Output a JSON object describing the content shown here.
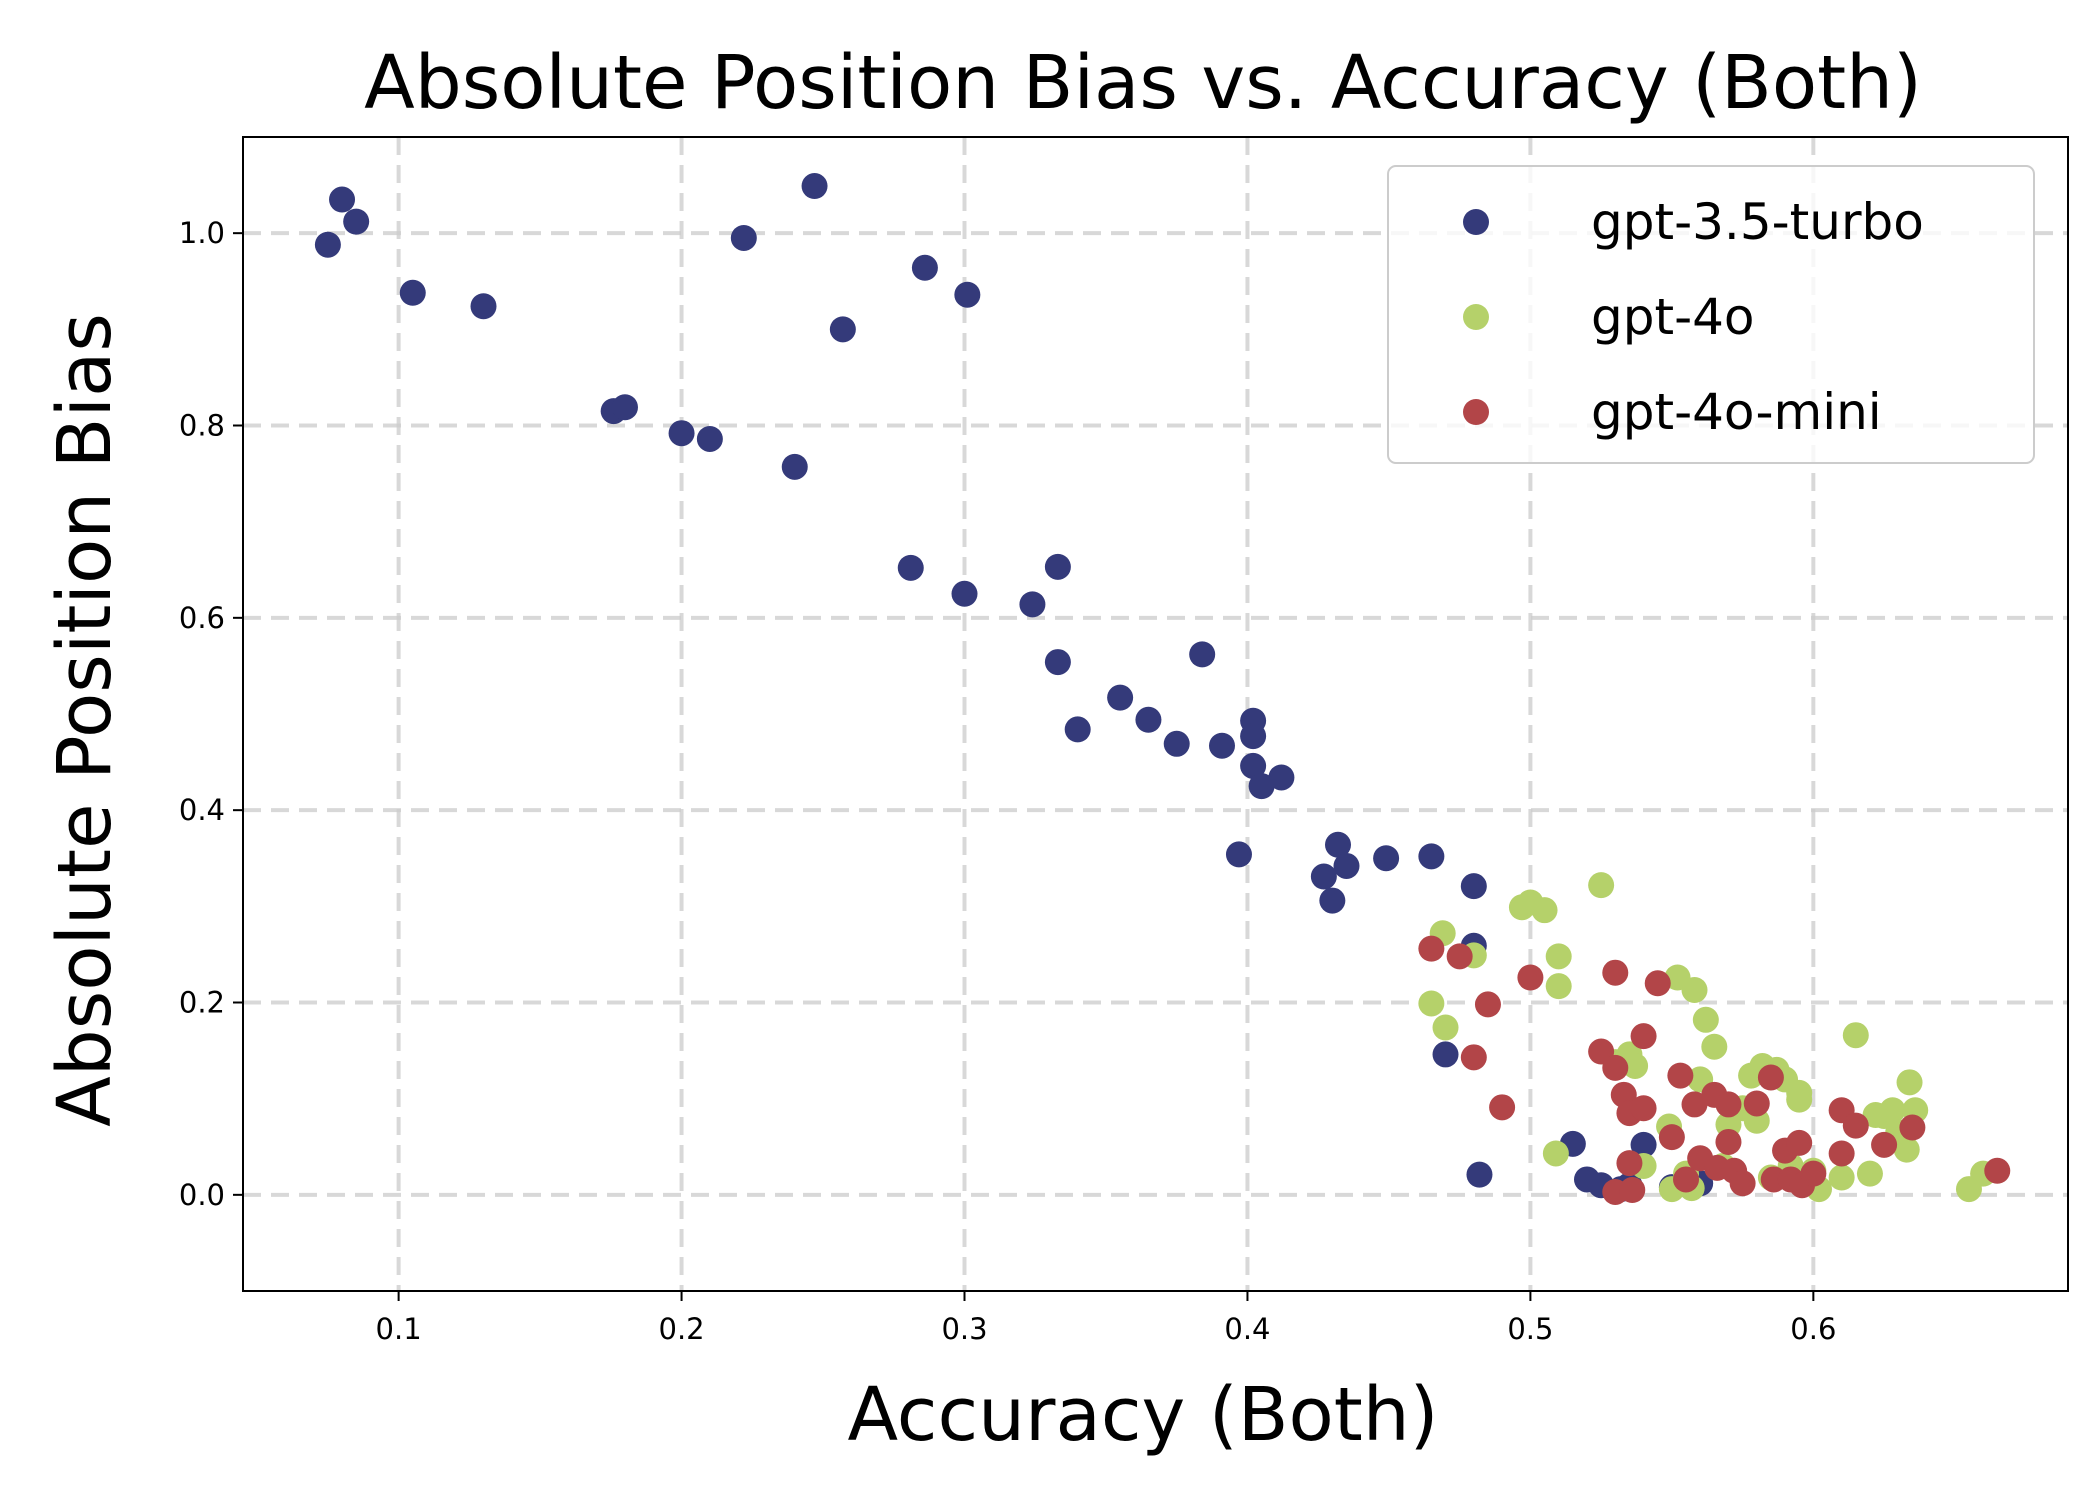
{
  "chart_data": {
    "type": "scatter",
    "title": "Absolute Position Bias vs. Accuracy (Both)",
    "xlabel": "Accuracy (Both)",
    "ylabel": "Absolute Position Bias",
    "xlim": [
      0.045,
      0.69
    ],
    "ylim": [
      -0.1,
      1.1
    ],
    "xticks": [
      0.1,
      0.2,
      0.3,
      0.4,
      0.5,
      0.6
    ],
    "yticks": [
      0.0,
      0.2,
      0.4,
      0.6,
      0.8,
      1.0
    ],
    "xtick_labels": [
      "0.1",
      "0.2",
      "0.3",
      "0.4",
      "0.5",
      "0.6"
    ],
    "ytick_labels": [
      "0.0",
      "0.2",
      "0.4",
      "0.6",
      "0.8",
      "1.0"
    ],
    "grid": true,
    "legend_position": "top-right",
    "series": [
      {
        "name": "gpt-3.5-turbo",
        "color": "#343a7a",
        "points": [
          [
            0.075,
            0.988
          ],
          [
            0.08,
            1.035
          ],
          [
            0.085,
            1.012
          ],
          [
            0.105,
            0.938
          ],
          [
            0.13,
            0.924
          ],
          [
            0.176,
            0.815
          ],
          [
            0.18,
            0.819
          ],
          [
            0.2,
            0.792
          ],
          [
            0.21,
            0.786
          ],
          [
            0.222,
            0.995
          ],
          [
            0.24,
            0.757
          ],
          [
            0.247,
            1.049
          ],
          [
            0.257,
            0.9
          ],
          [
            0.281,
            0.652
          ],
          [
            0.286,
            0.964
          ],
          [
            0.3,
            0.625
          ],
          [
            0.301,
            0.936
          ],
          [
            0.324,
            0.614
          ],
          [
            0.333,
            0.554
          ],
          [
            0.333,
            0.653
          ],
          [
            0.34,
            0.484
          ],
          [
            0.355,
            0.517
          ],
          [
            0.365,
            0.494
          ],
          [
            0.375,
            0.469
          ],
          [
            0.384,
            0.562
          ],
          [
            0.391,
            0.467
          ],
          [
            0.397,
            0.354
          ],
          [
            0.402,
            0.493
          ],
          [
            0.402,
            0.477
          ],
          [
            0.402,
            0.446
          ],
          [
            0.405,
            0.425
          ],
          [
            0.412,
            0.434
          ],
          [
            0.427,
            0.331
          ],
          [
            0.43,
            0.306
          ],
          [
            0.432,
            0.364
          ],
          [
            0.435,
            0.342
          ],
          [
            0.449,
            0.35
          ],
          [
            0.465,
            0.352
          ],
          [
            0.47,
            0.146
          ],
          [
            0.48,
            0.321
          ],
          [
            0.48,
            0.259
          ],
          [
            0.482,
            0.021
          ],
          [
            0.515,
            0.053
          ],
          [
            0.52,
            0.016
          ],
          [
            0.525,
            0.01
          ],
          [
            0.532,
            0.006
          ],
          [
            0.535,
            0.01
          ],
          [
            0.54,
            0.052
          ],
          [
            0.55,
            0.008
          ],
          [
            0.56,
            0.012
          ]
        ]
      },
      {
        "name": "gpt-4o",
        "color": "#b5d16a",
        "points": [
          [
            0.465,
            0.199
          ],
          [
            0.469,
            0.272
          ],
          [
            0.47,
            0.174
          ],
          [
            0.48,
            0.249
          ],
          [
            0.497,
            0.299
          ],
          [
            0.5,
            0.304
          ],
          [
            0.505,
            0.296
          ],
          [
            0.509,
            0.043
          ],
          [
            0.51,
            0.217
          ],
          [
            0.51,
            0.248
          ],
          [
            0.525,
            0.322
          ],
          [
            0.53,
            0.138
          ],
          [
            0.535,
            0.146
          ],
          [
            0.537,
            0.134
          ],
          [
            0.54,
            0.03
          ],
          [
            0.549,
            0.071
          ],
          [
            0.55,
            0.006
          ],
          [
            0.552,
            0.226
          ],
          [
            0.555,
            0.022
          ],
          [
            0.557,
            0.007
          ],
          [
            0.558,
            0.213
          ],
          [
            0.56,
            0.12
          ],
          [
            0.562,
            0.182
          ],
          [
            0.565,
            0.154
          ],
          [
            0.568,
            0.03
          ],
          [
            0.57,
            0.073
          ],
          [
            0.575,
            0.09
          ],
          [
            0.578,
            0.124
          ],
          [
            0.58,
            0.077
          ],
          [
            0.582,
            0.134
          ],
          [
            0.585,
            0.018
          ],
          [
            0.587,
            0.13
          ],
          [
            0.59,
            0.12
          ],
          [
            0.592,
            0.03
          ],
          [
            0.595,
            0.106
          ],
          [
            0.595,
            0.099
          ],
          [
            0.6,
            0.025
          ],
          [
            0.602,
            0.006
          ],
          [
            0.61,
            0.018
          ],
          [
            0.615,
            0.166
          ],
          [
            0.62,
            0.022
          ],
          [
            0.622,
            0.083
          ],
          [
            0.625,
            0.082
          ],
          [
            0.628,
            0.088
          ],
          [
            0.63,
            0.065
          ],
          [
            0.633,
            0.047
          ],
          [
            0.634,
            0.117
          ],
          [
            0.636,
            0.088
          ],
          [
            0.655,
            0.006
          ],
          [
            0.66,
            0.022
          ]
        ]
      },
      {
        "name": "gpt-4o-mini",
        "color": "#b24548",
        "points": [
          [
            0.465,
            0.256
          ],
          [
            0.475,
            0.248
          ],
          [
            0.48,
            0.143
          ],
          [
            0.485,
            0.198
          ],
          [
            0.49,
            0.091
          ],
          [
            0.5,
            0.226
          ],
          [
            0.525,
            0.149
          ],
          [
            0.53,
            0.231
          ],
          [
            0.53,
            0.132
          ],
          [
            0.53,
            0.003
          ],
          [
            0.533,
            0.104
          ],
          [
            0.535,
            0.085
          ],
          [
            0.535,
            0.033
          ],
          [
            0.536,
            0.005
          ],
          [
            0.54,
            0.09
          ],
          [
            0.54,
            0.165
          ],
          [
            0.545,
            0.22
          ],
          [
            0.55,
            0.06
          ],
          [
            0.553,
            0.124
          ],
          [
            0.555,
            0.016
          ],
          [
            0.558,
            0.094
          ],
          [
            0.56,
            0.038
          ],
          [
            0.565,
            0.104
          ],
          [
            0.566,
            0.028
          ],
          [
            0.57,
            0.055
          ],
          [
            0.57,
            0.094
          ],
          [
            0.572,
            0.025
          ],
          [
            0.575,
            0.012
          ],
          [
            0.58,
            0.095
          ],
          [
            0.585,
            0.122
          ],
          [
            0.586,
            0.016
          ],
          [
            0.59,
            0.046
          ],
          [
            0.592,
            0.016
          ],
          [
            0.595,
            0.054
          ],
          [
            0.596,
            0.01
          ],
          [
            0.6,
            0.022
          ],
          [
            0.61,
            0.043
          ],
          [
            0.61,
            0.088
          ],
          [
            0.615,
            0.072
          ],
          [
            0.625,
            0.052
          ],
          [
            0.635,
            0.07
          ],
          [
            0.665,
            0.025
          ]
        ]
      }
    ]
  }
}
